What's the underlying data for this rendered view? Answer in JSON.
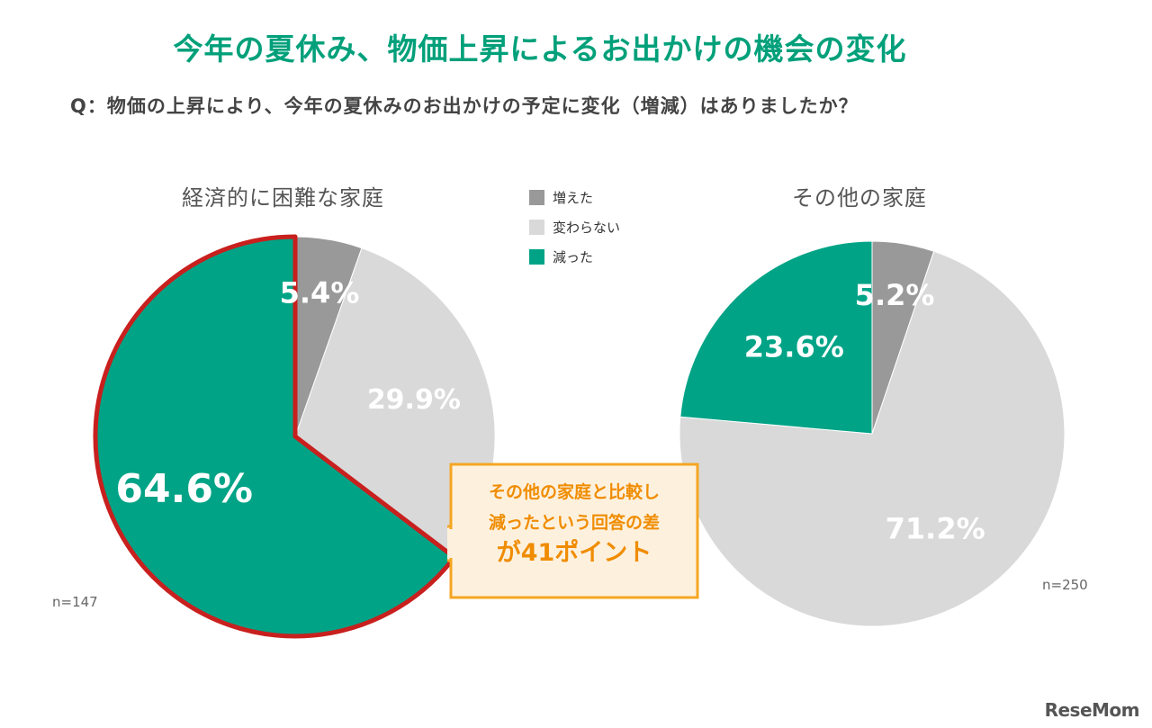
{
  "title": "今年の夏休み、物価上昇によるお出かけの機会の変化",
  "question": "Q：物価の上昇により、今年の夏休みのお出かけの予定に変化（増減）はありましたか？",
  "legend": [
    {
      "label": "増えた",
      "color": "#999999"
    },
    {
      "label": "変わらない",
      "color": "#d9d9d9"
    },
    {
      "label": "減った",
      "color": "#00a386"
    }
  ],
  "chart_data": [
    {
      "type": "pie",
      "title": "経済的に困難な家庭",
      "note": "n=147",
      "slices": [
        {
          "name": "増えた",
          "value": 5.4,
          "label": "5.4%",
          "color": "#999999"
        },
        {
          "name": "変わらない",
          "value": 29.9,
          "label": "29.9%",
          "color": "#d9d9d9"
        },
        {
          "name": "減った",
          "value": 64.6,
          "label": "64.6%",
          "color": "#00a386"
        }
      ],
      "highlight": "減った"
    },
    {
      "type": "pie",
      "title": "その他の家庭",
      "note": "n=250",
      "slices": [
        {
          "name": "増えた",
          "value": 5.2,
          "label": "5.2%",
          "color": "#999999"
        },
        {
          "name": "変わらない",
          "value": 71.2,
          "label": "71.2%",
          "color": "#d9d9d9"
        },
        {
          "name": "減った",
          "value": 23.6,
          "label": "23.6%",
          "color": "#00a386"
        }
      ]
    }
  ],
  "callout": {
    "line1": "その他の家庭と比較し",
    "line2": "減ったという回答の差",
    "line3": "が41ポイント"
  },
  "watermark": "ReseMom"
}
